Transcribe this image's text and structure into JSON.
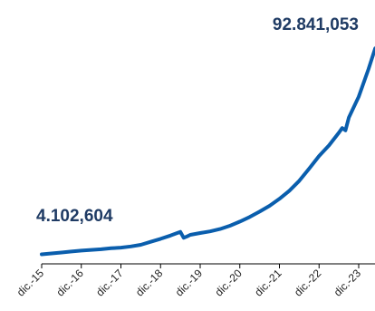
{
  "chart_data": {
    "type": "line",
    "title": "",
    "xlabel": "",
    "ylabel": "",
    "x_tick_labels": [
      "dic.-15",
      "dic.-16",
      "dic.-17",
      "dic.-18",
      "dic.-19",
      "dic.-20",
      "dic.-21",
      "dic.-22",
      "dic.-23"
    ],
    "ylim": [
      0,
      100000000
    ],
    "grid": false,
    "legend": "none",
    "colors": {
      "line": "#0a5ead",
      "label": "#1f3b64",
      "axis": "#000000"
    },
    "annotations": {
      "start": "4.102,604",
      "end": "92.841,053"
    },
    "series": [
      {
        "x": [
          "2015-12",
          "2016-03",
          "2016-06",
          "2016-09",
          "2016-12",
          "2017-03",
          "2017-06",
          "2017-09",
          "2017-12",
          "2018-03",
          "2018-06",
          "2018-09",
          "2018-12",
          "2019-03",
          "2019-06",
          "2019-07",
          "2019-08",
          "2019-09",
          "2019-12",
          "2020-03",
          "2020-06",
          "2020-09",
          "2020-12",
          "2021-03",
          "2021-06",
          "2021-09",
          "2021-12",
          "2022-03",
          "2022-06",
          "2022-09",
          "2022-12",
          "2023-03",
          "2023-06",
          "2023-07",
          "2023-08",
          "2023-09",
          "2023-12",
          "2024-03",
          "2024-05"
        ],
        "values": [
          4102604,
          4500000,
          4900000,
          5300000,
          5700000,
          6000000,
          6300000,
          6700000,
          7000000,
          7500000,
          8200000,
          9500000,
          10800000,
          12200000,
          13800000,
          11200000,
          11800000,
          12500000,
          13300000,
          14000000,
          15000000,
          16400000,
          18200000,
          20200000,
          22500000,
          25000000,
          28000000,
          31500000,
          35800000,
          41000000,
          46500000,
          51000000,
          56500000,
          58500000,
          57500000,
          63000000,
          72000000,
          84000000,
          92841053
        ]
      }
    ]
  }
}
